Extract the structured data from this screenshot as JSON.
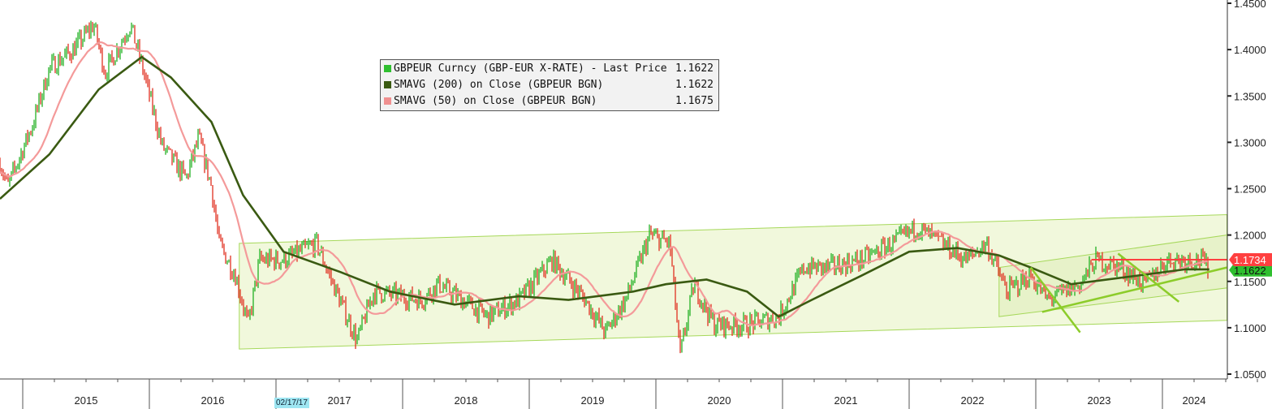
{
  "chart_data": {
    "type": "line",
    "title": "GBPEUR Curncy",
    "ylim": [
      1.05,
      1.45
    ],
    "xlim": [
      2014.82,
      2024.51
    ],
    "yticks": [
      "1.0500",
      "1.1000",
      "1.1500",
      "1.2000",
      "1.2500",
      "1.3000",
      "1.3500",
      "1.4000",
      "1.4500"
    ],
    "xticks": [
      {
        "label": "2015",
        "at": 2015.5
      },
      {
        "label": "2016",
        "at": 2016.5
      },
      {
        "label": "2017",
        "at": 2017.5
      },
      {
        "label": "2018",
        "at": 2018.5
      },
      {
        "label": "2019",
        "at": 2019.5
      },
      {
        "label": "2020",
        "at": 2020.5
      },
      {
        "label": "2021",
        "at": 2021.5
      },
      {
        "label": "2022",
        "at": 2022.5
      },
      {
        "label": "2023",
        "at": 2023.5
      },
      {
        "label": "2024",
        "at": 2024.25
      }
    ],
    "year_bounds": [
      2015,
      2016,
      2017,
      2018,
      2019,
      2020,
      2021,
      2022,
      2023,
      2024
    ],
    "cursor_date": "02/17/17",
    "legend": [
      {
        "label": "GBPEUR Curncy (GBP-EUR X-RATE) - Last Price",
        "value": "1.1622",
        "color": "#2fbf2f"
      },
      {
        "label": "SMAVG (200)  on Close (GBPEUR BGN)",
        "value": "1.1622",
        "color": "#3a5a12"
      },
      {
        "label": "SMAVG (50)  on Close (GBPEUR BGN)",
        "value": "1.1675",
        "color": "#f09090"
      }
    ],
    "price": [
      [
        2014.82,
        1.278
      ],
      [
        2014.88,
        1.252
      ],
      [
        2015.08,
        1.32
      ],
      [
        2015.21,
        1.38
      ],
      [
        2015.4,
        1.4
      ],
      [
        2015.56,
        1.427
      ],
      [
        2015.65,
        1.375
      ],
      [
        2015.85,
        1.427
      ],
      [
        2015.94,
        1.383
      ],
      [
        2016.1,
        1.296
      ],
      [
        2016.29,
        1.261
      ],
      [
        2016.39,
        1.305
      ],
      [
        2016.49,
        1.252
      ],
      [
        2016.55,
        1.191
      ],
      [
        2016.68,
        1.156
      ],
      [
        2016.78,
        1.103
      ],
      [
        2016.87,
        1.173
      ],
      [
        2017.06,
        1.173
      ],
      [
        2017.32,
        1.191
      ],
      [
        2017.45,
        1.147
      ],
      [
        2017.64,
        1.086
      ],
      [
        2017.77,
        1.139
      ],
      [
        2018.15,
        1.13
      ],
      [
        2018.28,
        1.147
      ],
      [
        2018.67,
        1.112
      ],
      [
        2018.92,
        1.13
      ],
      [
        2019.18,
        1.173
      ],
      [
        2019.44,
        1.13
      ],
      [
        2019.6,
        1.095
      ],
      [
        2019.76,
        1.13
      ],
      [
        2019.95,
        1.2
      ],
      [
        2020.11,
        1.191
      ],
      [
        2020.19,
        1.069
      ],
      [
        2020.3,
        1.147
      ],
      [
        2020.46,
        1.103
      ],
      [
        2020.72,
        1.103
      ],
      [
        2020.97,
        1.112
      ],
      [
        2021.17,
        1.165
      ],
      [
        2021.36,
        1.165
      ],
      [
        2021.62,
        1.173
      ],
      [
        2021.87,
        1.191
      ],
      [
        2022.06,
        1.208
      ],
      [
        2022.26,
        1.191
      ],
      [
        2022.45,
        1.173
      ],
      [
        2022.61,
        1.191
      ],
      [
        2022.77,
        1.139
      ],
      [
        2022.96,
        1.156
      ],
      [
        2023.09,
        1.13
      ],
      [
        2023.35,
        1.147
      ],
      [
        2023.47,
        1.173
      ],
      [
        2023.67,
        1.165
      ],
      [
        2023.86,
        1.147
      ],
      [
        2024.04,
        1.173
      ],
      [
        2024.31,
        1.173
      ],
      [
        2024.37,
        1.162
      ]
    ],
    "sma200": [
      [
        2014.82,
        1.239
      ],
      [
        2015.21,
        1.287
      ],
      [
        2015.6,
        1.357
      ],
      [
        2015.94,
        1.392
      ],
      [
        2016.17,
        1.37
      ],
      [
        2016.49,
        1.322
      ],
      [
        2016.74,
        1.243
      ],
      [
        2017.06,
        1.182
      ],
      [
        2017.51,
        1.16
      ],
      [
        2017.9,
        1.139
      ],
      [
        2018.41,
        1.125
      ],
      [
        2018.92,
        1.134
      ],
      [
        2019.31,
        1.13
      ],
      [
        2019.82,
        1.139
      ],
      [
        2020.08,
        1.147
      ],
      [
        2020.4,
        1.152
      ],
      [
        2020.72,
        1.139
      ],
      [
        2020.97,
        1.112
      ],
      [
        2021.23,
        1.13
      ],
      [
        2021.62,
        1.156
      ],
      [
        2022.0,
        1.182
      ],
      [
        2022.38,
        1.186
      ],
      [
        2022.71,
        1.178
      ],
      [
        2022.96,
        1.165
      ],
      [
        2023.28,
        1.147
      ],
      [
        2023.79,
        1.156
      ],
      [
        2024.18,
        1.163
      ],
      [
        2024.37,
        1.163
      ]
    ],
    "last_price": {
      "value": "1.1622",
      "color": "#2fbf2f"
    },
    "high_marker": {
      "value": "1.1734",
      "color": "#ff4040",
      "from": 2023.44
    },
    "channels": [
      {
        "upper": [
          [
            2016.71,
            1.191
          ],
          [
            2024.51,
            1.222
          ]
        ],
        "lower": [
          [
            2016.71,
            1.077
          ],
          [
            2024.51,
            1.108
          ]
        ]
      },
      {
        "upper": [
          [
            2022.71,
            1.165
          ],
          [
            2024.51,
            1.2
          ]
        ],
        "lower": [
          [
            2022.71,
            1.112
          ],
          [
            2024.51,
            1.143
          ]
        ]
      }
    ],
    "trendlines": [
      [
        [
          2022.96,
          1.165
        ],
        [
          2023.35,
          1.095
        ]
      ],
      [
        [
          2023.65,
          1.18
        ],
        [
          2024.13,
          1.128
        ]
      ],
      [
        [
          2023.05,
          1.117
        ],
        [
          2024.51,
          1.165
        ]
      ]
    ]
  }
}
